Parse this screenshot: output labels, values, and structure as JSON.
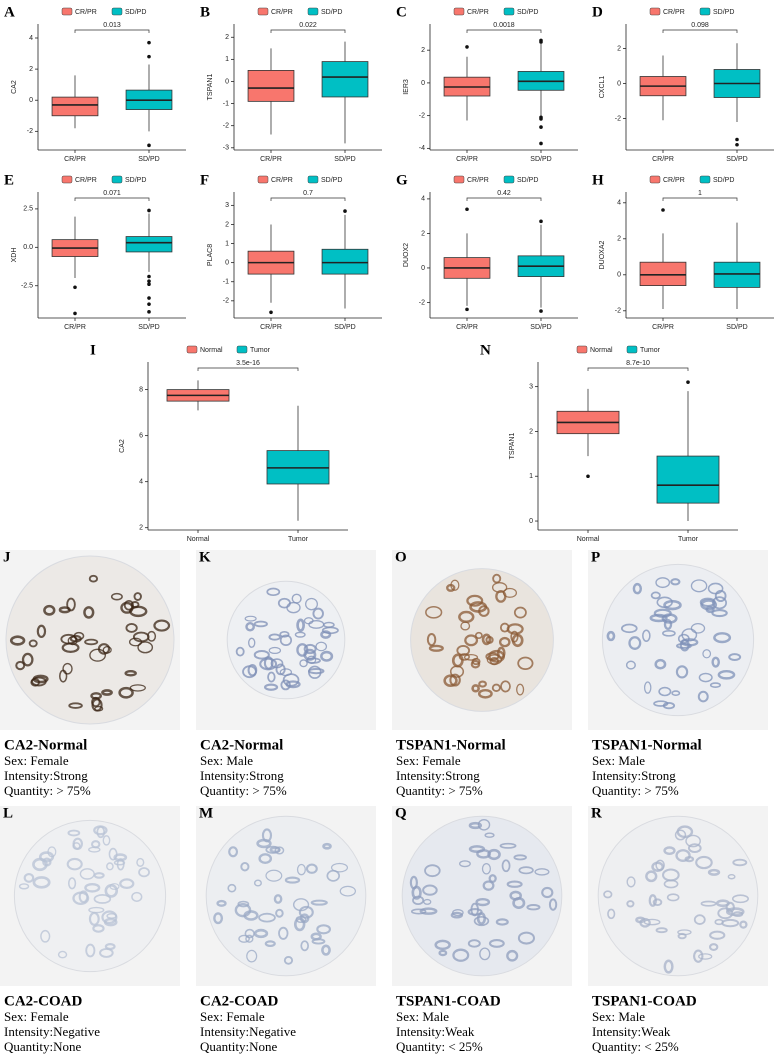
{
  "chart_data": [
    {
      "type": "box",
      "panel_label": "A",
      "ylabel": "CA2",
      "categories": [
        "CR/PR",
        "SD/PD"
      ],
      "annotation": "0.013",
      "ylim": [
        -3.2,
        4.9
      ],
      "yticks": [
        -2,
        0,
        2,
        4
      ],
      "series": [
        {
          "name": "CR/PR",
          "color": "#f8766d",
          "box": {
            "min": -1.8,
            "q1": -1.0,
            "median": -0.3,
            "q3": 0.2,
            "max": 1.6,
            "outliers": []
          }
        },
        {
          "name": "SD/PD",
          "color": "#00bfc4",
          "box": {
            "min": -2.0,
            "q1": -0.6,
            "median": 0.0,
            "q3": 0.65,
            "max": 2.3,
            "outliers": [
              3.7,
              2.8,
              -2.9
            ]
          }
        }
      ]
    },
    {
      "type": "box",
      "panel_label": "B",
      "ylabel": "TSPAN1",
      "categories": [
        "CR/PR",
        "SD/PD"
      ],
      "annotation": "0.022",
      "ylim": [
        -3.1,
        2.6
      ],
      "yticks": [
        -3,
        -2,
        -1,
        0,
        1,
        2
      ],
      "series": [
        {
          "name": "CR/PR",
          "color": "#f8766d",
          "box": {
            "min": -2.4,
            "q1": -0.9,
            "median": -0.3,
            "q3": 0.5,
            "max": 1.5,
            "outliers": []
          }
        },
        {
          "name": "SD/PD",
          "color": "#00bfc4",
          "box": {
            "min": -2.8,
            "q1": -0.7,
            "median": 0.2,
            "q3": 0.9,
            "max": 1.8,
            "outliers": []
          }
        }
      ]
    },
    {
      "type": "box",
      "panel_label": "C",
      "ylabel": "IER3",
      "categories": [
        "CR/PR",
        "SD/PD"
      ],
      "annotation": "0.0018",
      "ylim": [
        -4.1,
        3.6
      ],
      "yticks": [
        -4,
        -2,
        0,
        2
      ],
      "series": [
        {
          "name": "CR/PR",
          "color": "#f8766d",
          "box": {
            "min": -2.3,
            "q1": -0.8,
            "median": -0.25,
            "q3": 0.35,
            "max": 1.6,
            "outliers": [
              2.2
            ]
          }
        },
        {
          "name": "SD/PD",
          "color": "#00bfc4",
          "box": {
            "min": -2.0,
            "q1": -0.45,
            "median": 0.1,
            "q3": 0.7,
            "max": 2.4,
            "outliers": [
              2.6,
              2.5,
              -2.1,
              -2.2,
              -2.7,
              -3.7
            ]
          }
        }
      ]
    },
    {
      "type": "box",
      "panel_label": "D",
      "ylabel": "CXCL1",
      "categories": [
        "CR/PR",
        "SD/PD"
      ],
      "annotation": "0.098",
      "ylim": [
        -3.8,
        3.4
      ],
      "yticks": [
        -2,
        0,
        2
      ],
      "series": [
        {
          "name": "CR/PR",
          "color": "#f8766d",
          "box": {
            "min": -2.1,
            "q1": -0.7,
            "median": -0.15,
            "q3": 0.4,
            "max": 1.6,
            "outliers": []
          }
        },
        {
          "name": "SD/PD",
          "color": "#00bfc4",
          "box": {
            "min": -2.2,
            "q1": -0.8,
            "median": 0.0,
            "q3": 0.8,
            "max": 2.3,
            "outliers": [
              -3.2,
              -3.5
            ]
          }
        }
      ]
    },
    {
      "type": "box",
      "panel_label": "E",
      "ylabel": "XDH",
      "categories": [
        "CR/PR",
        "SD/PD"
      ],
      "annotation": "0.071",
      "ylim": [
        -4.6,
        3.6
      ],
      "yticks": [
        -2.5,
        {
          "value": 0,
          "label": "0.0"
        },
        2.5
      ],
      "series": [
        {
          "name": "CR/PR",
          "color": "#f8766d",
          "box": {
            "min": -2.0,
            "q1": -0.6,
            "median": -0.05,
            "q3": 0.5,
            "max": 2.0,
            "outliers": [
              -2.6,
              -4.3
            ]
          }
        },
        {
          "name": "SD/PD",
          "color": "#00bfc4",
          "box": {
            "min": -1.6,
            "q1": -0.3,
            "median": 0.3,
            "q3": 0.7,
            "max": 2.2,
            "outliers": [
              2.4,
              -1.9,
              -2.2,
              -2.4,
              -3.3,
              -3.7,
              -4.2
            ]
          }
        }
      ]
    },
    {
      "type": "box",
      "panel_label": "F",
      "ylabel": "PLAC8",
      "categories": [
        "CR/PR",
        "SD/PD"
      ],
      "annotation": "0.7",
      "ylim": [
        -2.9,
        3.7
      ],
      "yticks": [
        -2,
        -1,
        0,
        1,
        2,
        3
      ],
      "series": [
        {
          "name": "CR/PR",
          "color": "#f8766d",
          "box": {
            "min": -2.1,
            "q1": -0.6,
            "median": 0.0,
            "q3": 0.6,
            "max": 2.0,
            "outliers": [
              -2.6
            ]
          }
        },
        {
          "name": "SD/PD",
          "color": "#00bfc4",
          "box": {
            "min": -2.4,
            "q1": -0.6,
            "median": 0.0,
            "q3": 0.7,
            "max": 2.5,
            "outliers": [
              2.7
            ]
          }
        }
      ]
    },
    {
      "type": "box",
      "panel_label": "G",
      "ylabel": "DUOX2",
      "categories": [
        "CR/PR",
        "SD/PD"
      ],
      "annotation": "0.42",
      "ylim": [
        -2.9,
        4.4
      ],
      "yticks": [
        -2,
        0,
        2,
        4
      ],
      "series": [
        {
          "name": "CR/PR",
          "color": "#f8766d",
          "box": {
            "min": -2.2,
            "q1": -0.6,
            "median": 0.0,
            "q3": 0.6,
            "max": 2.0,
            "outliers": [
              3.4,
              -2.4
            ]
          }
        },
        {
          "name": "SD/PD",
          "color": "#00bfc4",
          "box": {
            "min": -2.3,
            "q1": -0.5,
            "median": 0.1,
            "q3": 0.7,
            "max": 2.5,
            "outliers": [
              2.7,
              -2.5
            ]
          }
        }
      ]
    },
    {
      "type": "box",
      "panel_label": "H",
      "ylabel": "DUOXA2",
      "categories": [
        "CR/PR",
        "SD/PD"
      ],
      "annotation": "1",
      "ylim": [
        -2.4,
        4.6
      ],
      "yticks": [
        -2,
        0,
        2,
        4
      ],
      "series": [
        {
          "name": "CR/PR",
          "color": "#f8766d",
          "box": {
            "min": -1.9,
            "q1": -0.6,
            "median": 0.0,
            "q3": 0.7,
            "max": 2.3,
            "outliers": [
              3.6
            ]
          }
        },
        {
          "name": "SD/PD",
          "color": "#00bfc4",
          "box": {
            "min": -1.9,
            "q1": -0.7,
            "median": 0.05,
            "q3": 0.7,
            "max": 2.9,
            "outliers": []
          }
        }
      ]
    },
    {
      "type": "box",
      "panel_label": "I",
      "ylabel": "CA2",
      "categories": [
        "Normal",
        "Tumor"
      ],
      "annotation": "3.5e-16",
      "ylim": [
        1.9,
        9.2
      ],
      "yticks": [
        2,
        4,
        6,
        8
      ],
      "series": [
        {
          "name": "Normal",
          "color": "#f8766d",
          "box": {
            "min": 7.1,
            "q1": 7.5,
            "median": 7.75,
            "q3": 8.0,
            "max": 8.4,
            "outliers": []
          }
        },
        {
          "name": "Tumor",
          "color": "#00bfc4",
          "box": {
            "min": 2.3,
            "q1": 3.9,
            "median": 4.6,
            "q3": 5.35,
            "max": 7.3,
            "outliers": []
          }
        }
      ]
    },
    {
      "type": "box",
      "panel_label": "N",
      "ylabel": "TSPAN1",
      "categories": [
        "Normal",
        "Tumor"
      ],
      "annotation": "8.7e-10",
      "ylim": [
        -0.2,
        3.55
      ],
      "yticks": [
        0,
        1,
        2,
        3
      ],
      "series": [
        {
          "name": "Normal",
          "color": "#f8766d",
          "box": {
            "min": 1.45,
            "q1": 1.95,
            "median": 2.2,
            "q3": 2.45,
            "max": 2.95,
            "outliers": [
              1.0
            ]
          }
        },
        {
          "name": "Tumor",
          "color": "#00bfc4",
          "box": {
            "min": 0.0,
            "q1": 0.4,
            "median": 0.8,
            "q3": 1.45,
            "max": 2.9,
            "outliers": [
              3.1
            ]
          }
        }
      ]
    }
  ],
  "image_panels": [
    {
      "panel_label": "J",
      "title": "CA2-Normal",
      "lines": [
        "Sex: Female",
        "Intensity:Strong",
        "Quantity: > 75%"
      ]
    },
    {
      "panel_label": "K",
      "title": "CA2-Normal",
      "lines": [
        "Sex: Male",
        "Intensity:Strong",
        "Quantity: > 75%"
      ]
    },
    {
      "panel_label": "O",
      "title": "TSPAN1-Normal",
      "lines": [
        "Sex: Female",
        "Intensity:Strong",
        "Quantity: > 75%"
      ]
    },
    {
      "panel_label": "P",
      "title": "TSPAN1-Normal",
      "lines": [
        "Sex: Male",
        "Intensity:Strong",
        "Quantity: > 75%"
      ]
    },
    {
      "panel_label": "L",
      "title": "CA2-COAD",
      "lines": [
        "Sex: Female",
        "Intensity:Negative",
        "Quantity:None"
      ]
    },
    {
      "panel_label": "M",
      "title": "CA2-COAD",
      "lines": [
        "Sex: Female",
        "Intensity:Negative",
        "Quantity:None"
      ]
    },
    {
      "panel_label": "Q",
      "title": "TSPAN1-COAD",
      "lines": [
        "Sex: Male",
        "Intensity:Weak",
        "Quantity: < 25%"
      ]
    },
    {
      "panel_label": "R",
      "title": "TSPAN1-COAD",
      "lines": [
        "Sex: Male",
        "Intensity:Weak",
        "Quantity: < 25%"
      ]
    }
  ]
}
